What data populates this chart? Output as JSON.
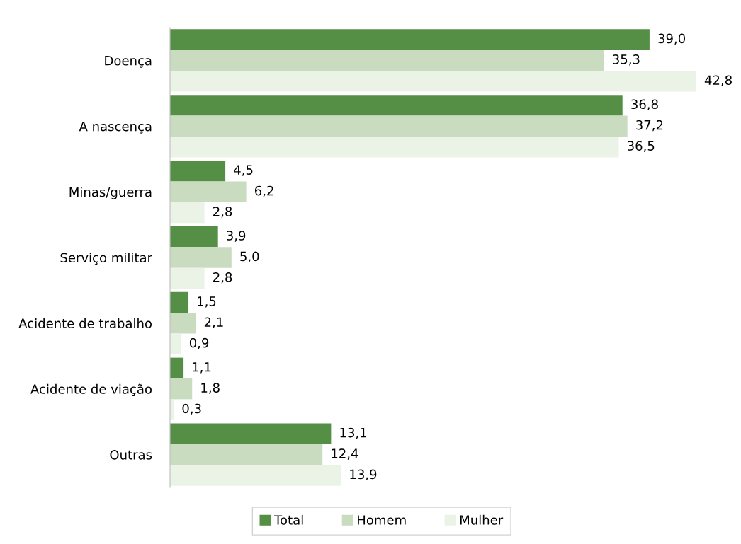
{
  "chart_data": {
    "type": "bar",
    "orientation": "horizontal",
    "categories": [
      "Doença",
      "A nascença",
      "Minas/guerra",
      "Serviço militar",
      "Acidente de trabalho",
      "Acidente de viação",
      "Outras"
    ],
    "series": [
      {
        "name": "Total",
        "color": "#548f45",
        "values": [
          39.0,
          36.8,
          4.5,
          3.9,
          1.5,
          1.1,
          13.1
        ],
        "value_labels": [
          "39,0",
          "36,8",
          "4,5",
          "3,9",
          "1,5",
          "1,1",
          "13,1"
        ]
      },
      {
        "name": "Homem",
        "color": "#c9dcc0",
        "values": [
          35.3,
          37.2,
          6.2,
          5.0,
          2.1,
          1.8,
          12.4
        ],
        "value_labels": [
          "35,3",
          "37,2",
          "6,2",
          "5,0",
          "2,1",
          "1,8",
          "12,4"
        ]
      },
      {
        "name": "Mulher",
        "color": "#ebf3e6",
        "values": [
          42.8,
          36.5,
          2.8,
          2.8,
          0.9,
          0.3,
          13.9
        ],
        "value_labels": [
          "42,8",
          "36,5",
          "2,8",
          "2,8",
          "0,9",
          "0,3",
          "13,9"
        ]
      }
    ],
    "legend": "bottom",
    "grid": false
  }
}
